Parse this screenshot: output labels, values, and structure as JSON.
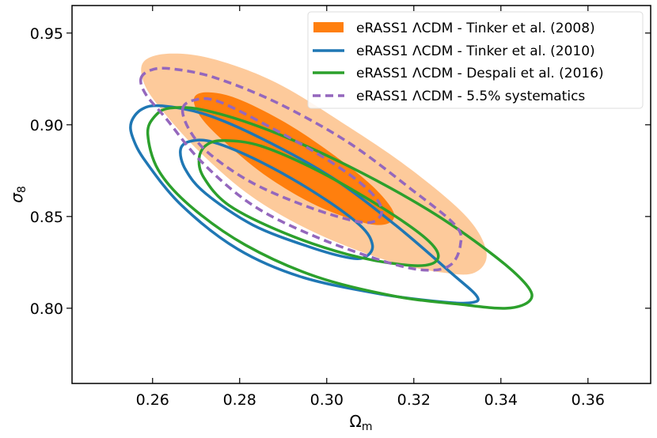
{
  "chart_data": {
    "type": "contour",
    "xlabel": "Ω",
    "xlabel_sub": "m",
    "ylabel": "σ",
    "ylabel_sub": "8",
    "xlim": [
      0.2415,
      0.3744
    ],
    "ylim": [
      0.759,
      0.965
    ],
    "xticks": [
      "0.26",
      "0.28",
      "0.30",
      "0.32",
      "0.34",
      "0.36"
    ],
    "yticks": [
      "0.80",
      "0.85",
      "0.90",
      "0.95"
    ],
    "grid": false,
    "legend_position": "top-right",
    "series": [
      {
        "name": "eRASS1 ΛCDM - Tinker et al. (2008)",
        "style": "filled",
        "colors": {
          "outer": "#fdca9b",
          "inner": "#ff7f0e"
        },
        "contours": [
          [
            [
              0.258,
              0.9345
            ],
            [
              0.264,
              0.9388
            ],
            [
              0.274,
              0.9358
            ],
            [
              0.2885,
              0.9228
            ],
            [
              0.3049,
              0.8991
            ],
            [
              0.3195,
              0.8754
            ],
            [
              0.3322,
              0.8496
            ],
            [
              0.3367,
              0.8302
            ],
            [
              0.334,
              0.8194
            ],
            [
              0.3267,
              0.8194
            ],
            [
              0.314,
              0.8259
            ],
            [
              0.2976,
              0.8409
            ],
            [
              0.2831,
              0.8603
            ],
            [
              0.2713,
              0.8841
            ],
            [
              0.2622,
              0.9078
            ],
            [
              0.258,
              0.9228
            ]
          ],
          [
            [
              0.2695,
              0.9142
            ],
            [
              0.2725,
              0.9177
            ],
            [
              0.2795,
              0.9142
            ],
            [
              0.2904,
              0.9013
            ],
            [
              0.3013,
              0.8841
            ],
            [
              0.3104,
              0.8668
            ],
            [
              0.3153,
              0.8526
            ],
            [
              0.314,
              0.8461
            ],
            [
              0.3085,
              0.8466
            ],
            [
              0.2976,
              0.856
            ],
            [
              0.2867,
              0.8711
            ],
            [
              0.2776,
              0.8884
            ],
            [
              0.2713,
              0.9034
            ]
          ]
        ]
      },
      {
        "name": "eRASS1 ΛCDM - Tinker et al. (2010)",
        "style": "solid",
        "color": "#1f77b4",
        "contours": [
          [
            [
              0.2551,
              0.9013
            ],
            [
              0.2576,
              0.9086
            ],
            [
              0.2622,
              0.9103
            ],
            [
              0.2722,
              0.9056
            ],
            [
              0.2849,
              0.8927
            ],
            [
              0.3013,
              0.8711
            ],
            [
              0.3158,
              0.8453
            ],
            [
              0.3285,
              0.8194
            ],
            [
              0.3345,
              0.8065
            ],
            [
              0.3331,
              0.803
            ],
            [
              0.3267,
              0.8034
            ],
            [
              0.3122,
              0.8078
            ],
            [
              0.294,
              0.8172
            ],
            [
              0.2795,
              0.8323
            ],
            [
              0.2667,
              0.856
            ],
            [
              0.2585,
              0.8797
            ],
            [
              0.2555,
              0.8927
            ]
          ],
          [
            [
              0.2664,
              0.8862
            ],
            [
              0.2685,
              0.8909
            ],
            [
              0.274,
              0.8905
            ],
            [
              0.2849,
              0.8797
            ],
            [
              0.2976,
              0.8625
            ],
            [
              0.3076,
              0.8453
            ],
            [
              0.3105,
              0.8345
            ],
            [
              0.3089,
              0.828
            ],
            [
              0.3049,
              0.8276
            ],
            [
              0.2958,
              0.8336
            ],
            [
              0.2831,
              0.8453
            ],
            [
              0.2722,
              0.8625
            ],
            [
              0.2676,
              0.8754
            ]
          ]
        ]
      },
      {
        "name": "eRASS1 ΛCDM - Despali et al. (2016)",
        "style": "solid",
        "color": "#2ca02c",
        "contours": [
          [
            [
              0.2589,
              0.8948
            ],
            [
              0.2604,
              0.9043
            ],
            [
              0.264,
              0.9091
            ],
            [
              0.2722,
              0.9078
            ],
            [
              0.2867,
              0.897
            ],
            [
              0.3049,
              0.8776
            ],
            [
              0.3231,
              0.8539
            ],
            [
              0.3376,
              0.8302
            ],
            [
              0.3458,
              0.8129
            ],
            [
              0.3467,
              0.8043
            ],
            [
              0.3413,
              0.8
            ],
            [
              0.3304,
              0.8022
            ],
            [
              0.3158,
              0.8065
            ],
            [
              0.2976,
              0.8172
            ],
            [
              0.2813,
              0.8345
            ],
            [
              0.2685,
              0.856
            ],
            [
              0.2613,
              0.8754
            ]
          ],
          [
            [
              0.2707,
              0.8819
            ],
            [
              0.2725,
              0.8892
            ],
            [
              0.2767,
              0.8914
            ],
            [
              0.2849,
              0.8884
            ],
            [
              0.2976,
              0.8754
            ],
            [
              0.3104,
              0.8582
            ],
            [
              0.3213,
              0.8409
            ],
            [
              0.3255,
              0.8302
            ],
            [
              0.324,
              0.8241
            ],
            [
              0.3176,
              0.8237
            ],
            [
              0.3049,
              0.8293
            ],
            [
              0.2904,
              0.8409
            ],
            [
              0.2776,
              0.856
            ],
            [
              0.2718,
              0.8711
            ]
          ]
        ]
      },
      {
        "name": "eRASS1 ΛCDM - 5.5% systematics",
        "style": "dashed",
        "color": "#9467bd",
        "contours": [
          [
            [
              0.2573,
              0.925
            ],
            [
              0.2595,
              0.9297
            ],
            [
              0.264,
              0.9306
            ],
            [
              0.274,
              0.9259
            ],
            [
              0.2885,
              0.9121
            ],
            [
              0.3049,
              0.8905
            ],
            [
              0.3195,
              0.8647
            ],
            [
              0.3295,
              0.8453
            ],
            [
              0.3307,
              0.8345
            ],
            [
              0.3285,
              0.8237
            ],
            [
              0.3231,
              0.8207
            ],
            [
              0.314,
              0.825
            ],
            [
              0.2976,
              0.8388
            ],
            [
              0.2831,
              0.856
            ],
            [
              0.2713,
              0.8797
            ],
            [
              0.2631,
              0.9034
            ],
            [
              0.2585,
              0.9164
            ]
          ],
          [
            [
              0.2669,
              0.9086
            ],
            [
              0.2695,
              0.9134
            ],
            [
              0.2749,
              0.9129
            ],
            [
              0.2867,
              0.8991
            ],
            [
              0.2995,
              0.8819
            ],
            [
              0.3085,
              0.8668
            ],
            [
              0.3125,
              0.8552
            ],
            [
              0.3113,
              0.8478
            ],
            [
              0.3067,
              0.8474
            ],
            [
              0.2958,
              0.8552
            ],
            [
              0.2831,
              0.8681
            ],
            [
              0.2731,
              0.8841
            ],
            [
              0.2685,
              0.897
            ]
          ]
        ]
      }
    ]
  }
}
